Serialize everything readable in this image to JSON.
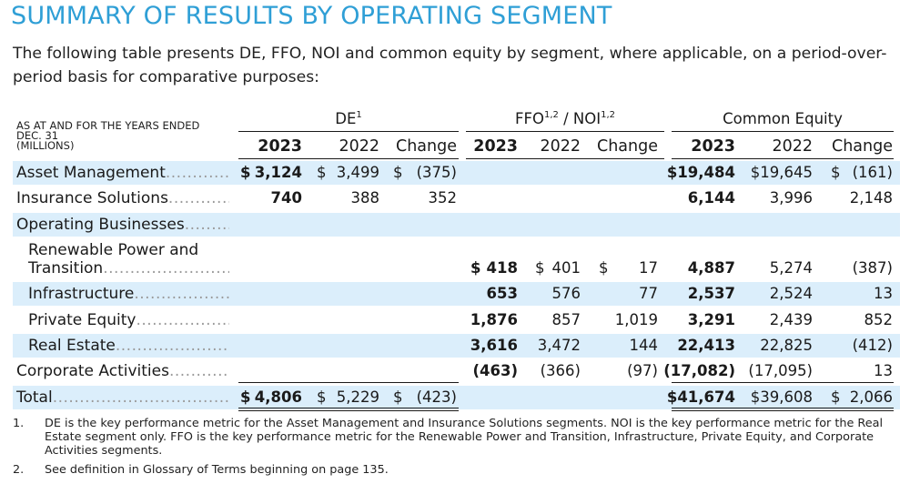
{
  "title": "SUMMARY OF RESULTS BY OPERATING SEGMENT",
  "intro": "The following table presents DE, FFO, NOI and common equity by segment, where applicable, on a period-over-period basis for comparative purposes:",
  "table": {
    "row_header": [
      "AS AT AND FOR THE YEARS ENDED",
      "DEC. 31",
      "(MILLIONS)"
    ],
    "groups": [
      {
        "label": "DE",
        "sup": "1"
      },
      {
        "label": "FFO",
        "sup1": "1,2",
        "mid": " / NOI",
        "sup2": "1,2"
      },
      {
        "label": "Common Equity"
      }
    ],
    "col_headers": [
      "2023",
      "2022",
      "Change",
      "2023",
      "2022",
      "Change",
      "2023",
      "2022",
      "Change"
    ],
    "rows": [
      {
        "label": "Asset Management",
        "values": [
          "3,124",
          "3,499",
          "(375)",
          "",
          "",
          "",
          "$19,484",
          "$19,645",
          "(161)"
        ],
        "dollar": [
          "$",
          "$",
          "$",
          "",
          "",
          "",
          "",
          "",
          "$"
        ]
      },
      {
        "label": "Insurance Solutions",
        "values": [
          "740",
          "388",
          "352",
          "",
          "",
          "",
          "6,144",
          "3,996",
          "2,148"
        ]
      },
      {
        "label": "Operating Businesses",
        "values": [
          "",
          "",
          "",
          "",
          "",
          "",
          "",
          "",
          ""
        ]
      },
      {
        "label_line1": "Renewable Power and",
        "label": "Transition",
        "values": [
          "",
          "",
          "",
          "418",
          "401",
          "17",
          "4,887",
          "5,274",
          "(387)"
        ],
        "dollar": [
          "",
          "",
          "",
          "$",
          "$",
          "$",
          "",
          "",
          ""
        ]
      },
      {
        "label": "Infrastructure",
        "values": [
          "",
          "",
          "",
          "653",
          "576",
          "77",
          "2,537",
          "2,524",
          "13"
        ]
      },
      {
        "label": "Private Equity",
        "values": [
          "",
          "",
          "",
          "1,876",
          "857",
          "1,019",
          "3,291",
          "2,439",
          "852"
        ]
      },
      {
        "label": "Real Estate",
        "values": [
          "",
          "",
          "",
          "3,616",
          "3,472",
          "144",
          "22,413",
          "22,825",
          "(412)"
        ]
      },
      {
        "label": "Corporate Activities",
        "values": [
          "",
          "",
          "",
          "(463)",
          "(366)",
          "(97)",
          "(17,082)",
          "(17,095)",
          "13"
        ]
      },
      {
        "label": "Total",
        "values": [
          "4,806",
          "5,229",
          "(423)",
          "",
          "",
          "",
          "$41,674",
          "$39,608",
          "2,066"
        ],
        "dollar": [
          "$",
          "$",
          "$",
          "",
          "",
          "",
          "",
          "",
          "$"
        ]
      }
    ]
  },
  "footnotes": [
    {
      "num": "1.",
      "text": "DE is the key performance metric for the Asset Management and Insurance Solutions segments. NOI is the key performance metric for the Real Estate segment only. FFO is the key performance metric for the Renewable Power and Transition, Infrastructure, Private Equity, and Corporate Activities segments."
    },
    {
      "num": "2.",
      "text": "See definition in Glossary of Terms beginning on page 135."
    }
  ],
  "colors": {
    "title": "#2f9fd6",
    "band": "#dbeefb"
  }
}
